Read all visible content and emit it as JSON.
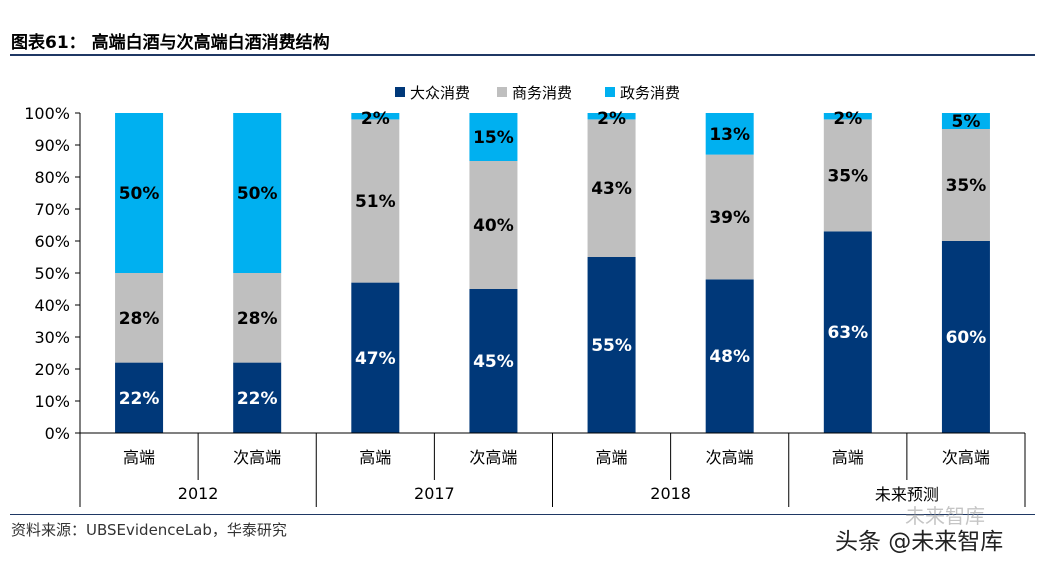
{
  "title": "图表61： 高端白酒与次高端白酒消费结构",
  "source": "资料来源：UBSEvidenceLab，华泰研究",
  "watermark": "头条 @未来智库",
  "watermark_ghost": "未来智库",
  "colors": {
    "mass": "#003879",
    "business": "#bfbfbf",
    "government": "#00b0f0",
    "rule": "#1f3864"
  },
  "chart_data": {
    "type": "bar",
    "stacked": true,
    "title": "高端白酒与次高端白酒消费结构",
    "ylim": [
      0,
      100
    ],
    "yticks": [
      0,
      10,
      20,
      30,
      40,
      50,
      60,
      70,
      80,
      90,
      100
    ],
    "ytick_labels": [
      "0%",
      "10%",
      "20%",
      "30%",
      "40%",
      "50%",
      "60%",
      "70%",
      "80%",
      "90%",
      "100%"
    ],
    "legend_position": "top-center",
    "groups": [
      {
        "label": "2012",
        "categories": [
          "高端",
          "次高端"
        ]
      },
      {
        "label": "2017",
        "categories": [
          "高端",
          "次高端"
        ]
      },
      {
        "label": "2018",
        "categories": [
          "高端",
          "次高端"
        ]
      },
      {
        "label": "未来预测",
        "categories": [
          "高端",
          "次高端"
        ]
      }
    ],
    "categories": [
      "高端",
      "次高端",
      "高端",
      "次高端",
      "高端",
      "次高端",
      "高端",
      "次高端"
    ],
    "series": [
      {
        "name": "大众消费",
        "color": "#003879",
        "values": [
          22,
          22,
          47,
          45,
          55,
          48,
          63,
          60
        ]
      },
      {
        "name": "商务消费",
        "color": "#bfbfbf",
        "values": [
          28,
          28,
          51,
          40,
          43,
          39,
          35,
          35
        ]
      },
      {
        "name": "政务消费",
        "color": "#00b0f0",
        "values": [
          50,
          50,
          2,
          15,
          2,
          13,
          2,
          5
        ]
      }
    ]
  }
}
